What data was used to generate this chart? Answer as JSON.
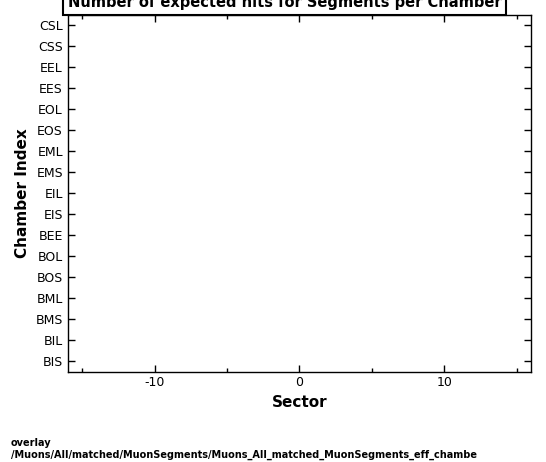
{
  "title": "Number of expected hits for Segments per Chamber",
  "xlabel": "Sector",
  "ylabel": "Chamber Index",
  "xlim": [
    -16,
    16
  ],
  "xticks": [
    -10,
    0,
    10
  ],
  "ytick_labels": [
    "CSL",
    "CSS",
    "EEL",
    "EES",
    "EOL",
    "EOS",
    "EML",
    "EMS",
    "EIL",
    "EIS",
    "BEE",
    "BOL",
    "BOS",
    "BML",
    "BMS",
    "BIL",
    "BIS"
  ],
  "background_color": "#ffffff",
  "plot_bg_color": "#ffffff",
  "footer_line1": "overlay",
  "footer_line2": "/Muons/All/matched/MuonSegments/Muons_All_matched_MuonSegments_eff_chambe",
  "title_fontsize": 10.5,
  "axis_label_fontsize": 11,
  "tick_fontsize": 9
}
